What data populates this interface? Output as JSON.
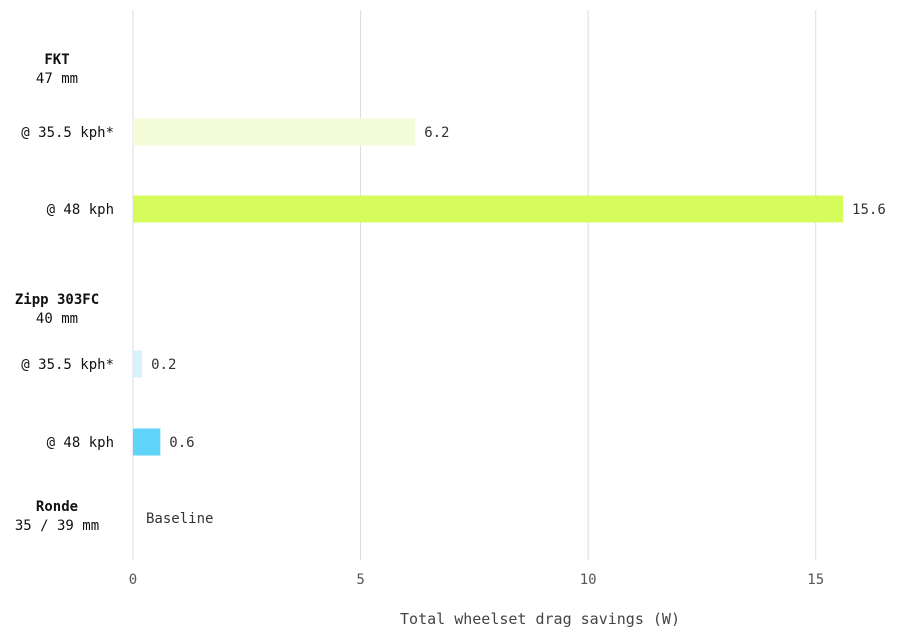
{
  "chart_data": {
    "type": "bar",
    "orientation": "horizontal",
    "xlabel": "Total wheelset drag savings (W)",
    "ylabel": "",
    "xlim": [
      0,
      16.5
    ],
    "x_ticks": [
      0,
      5,
      10,
      15
    ],
    "grid": "vertical",
    "groups": [
      {
        "name": "FKT",
        "sublabel": "47 mm"
      },
      {
        "name": "Zipp 303FC",
        "sublabel": "40 mm"
      },
      {
        "name": "Ronde",
        "sublabel": "35 / 39 mm"
      }
    ],
    "bars": [
      {
        "group": "FKT",
        "category": "@ 35.5 kph*",
        "value": 6.2,
        "label": "6.2",
        "color": "#f4fbd9"
      },
      {
        "group": "FKT",
        "category": "@ 48 kph",
        "value": 15.6,
        "label": "15.6",
        "color": "#d6fc5b"
      },
      {
        "group": "Zipp 303FC",
        "category": "@ 35.5 kph*",
        "value": 0.2,
        "label": "0.2",
        "color": "#d6f3fd"
      },
      {
        "group": "Zipp 303FC",
        "category": "@ 48 kph",
        "value": 0.6,
        "label": "0.6",
        "color": "#5fd3f8"
      },
      {
        "group": "Ronde",
        "category": "",
        "value": 0,
        "label": "Baseline",
        "color": "#ffffff"
      }
    ]
  }
}
